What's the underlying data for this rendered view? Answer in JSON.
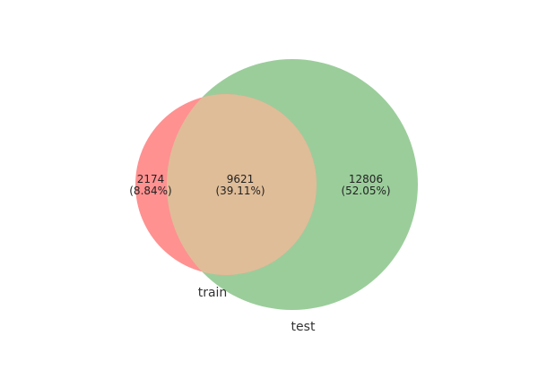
{
  "chart_data": {
    "type": "venn",
    "sets": [
      {
        "name": "train",
        "size": 11795,
        "color": "#ff9191"
      },
      {
        "name": "test",
        "size": 22427,
        "color": "#9bcd9b"
      }
    ],
    "intersection_color": "#dfbd98",
    "regions": {
      "train_only": {
        "count": "2174",
        "percent": "(8.84%)",
        "value": 2174
      },
      "both": {
        "count": "9621",
        "percent": "(39.11%)",
        "value": 9621
      },
      "test_only": {
        "count": "12806",
        "percent": "(52.05%)",
        "value": 12806
      }
    }
  }
}
